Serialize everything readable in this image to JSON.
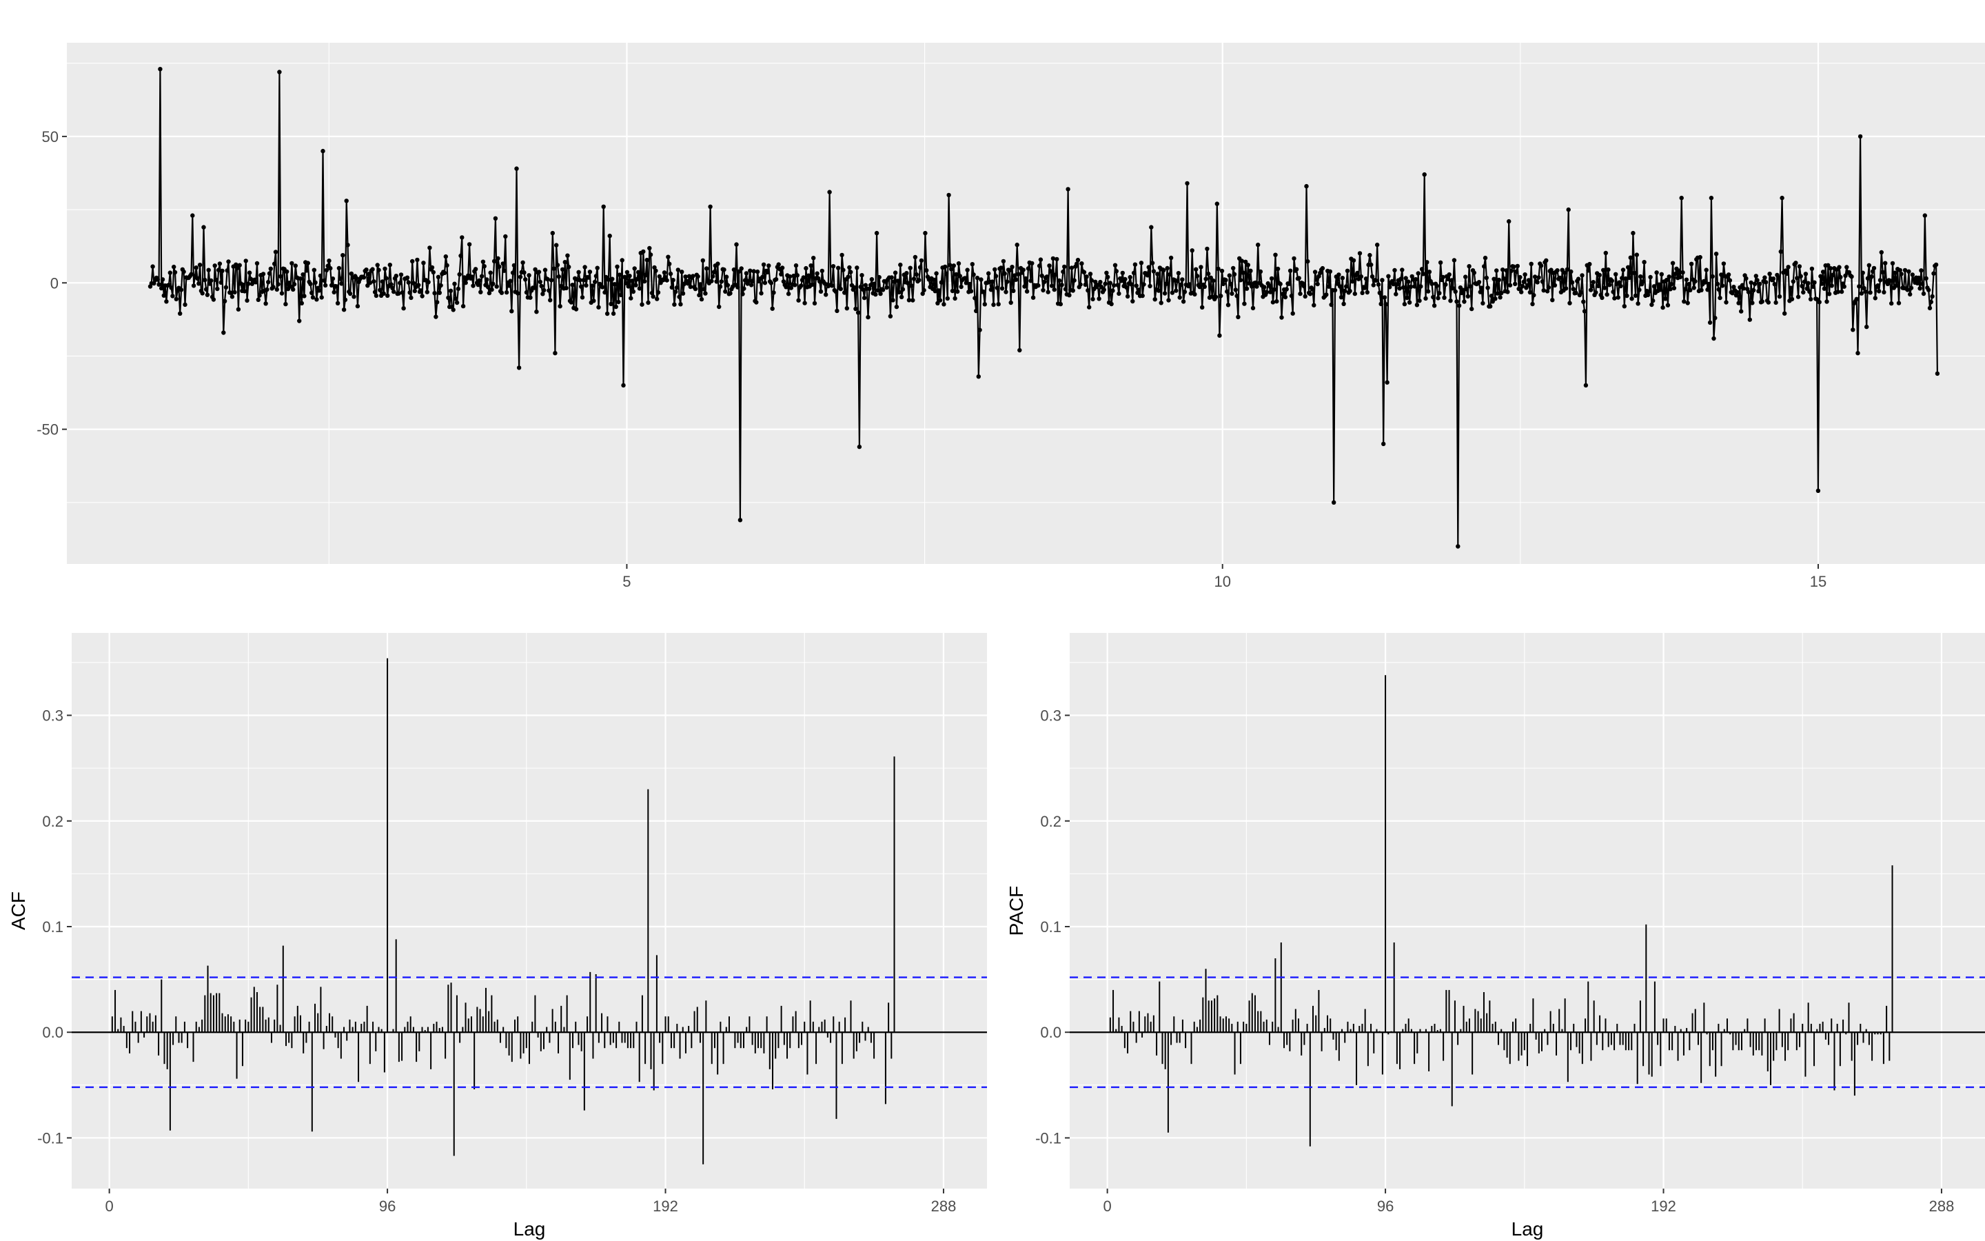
{
  "chart_data": [
    {
      "type": "line",
      "title": "",
      "xlabel": "",
      "ylabel": "",
      "xlim": [
        0.3,
        16.4
      ],
      "ylim": [
        -96,
        82
      ],
      "xticks": [
        5,
        10,
        15
      ],
      "yticks": [
        -50,
        0,
        50
      ],
      "xtick_labels": [
        "5",
        "10",
        "15"
      ],
      "ytick_labels": [
        "-50",
        "0",
        "50"
      ],
      "x_start": 1.0,
      "x_end": 16.0,
      "n_points": 1440,
      "baseline_noise": 4,
      "markers": true,
      "color": "#000000",
      "spikes": [
        {
          "x": 1.08,
          "y": 73
        },
        {
          "x": 2.08,
          "y": 72
        },
        {
          "x": 2.45,
          "y": 45
        },
        {
          "x": 2.65,
          "y": 28
        },
        {
          "x": 1.35,
          "y": 23
        },
        {
          "x": 1.45,
          "y": 19
        },
        {
          "x": 1.62,
          "y": -17
        },
        {
          "x": 2.25,
          "y": -13
        },
        {
          "x": 4.1,
          "y": -29
        },
        {
          "x": 4.08,
          "y": 39
        },
        {
          "x": 3.9,
          "y": 22
        },
        {
          "x": 4.4,
          "y": -24
        },
        {
          "x": 4.38,
          "y": 17
        },
        {
          "x": 4.8,
          "y": 26
        },
        {
          "x": 4.97,
          "y": -35
        },
        {
          "x": 5.7,
          "y": 26
        },
        {
          "x": 5.95,
          "y": -81
        },
        {
          "x": 6.7,
          "y": 31
        },
        {
          "x": 6.95,
          "y": -56
        },
        {
          "x": 7.1,
          "y": 17
        },
        {
          "x": 7.5,
          "y": 17
        },
        {
          "x": 7.7,
          "y": 30
        },
        {
          "x": 7.95,
          "y": -32
        },
        {
          "x": 8.3,
          "y": -23
        },
        {
          "x": 8.28,
          "y": 13
        },
        {
          "x": 8.7,
          "y": 32
        },
        {
          "x": 9.4,
          "y": 19
        },
        {
          "x": 9.7,
          "y": 34
        },
        {
          "x": 9.95,
          "y": 27
        },
        {
          "x": 9.97,
          "y": -18
        },
        {
          "x": 10.3,
          "y": 13
        },
        {
          "x": 10.7,
          "y": 33
        },
        {
          "x": 10.93,
          "y": -75
        },
        {
          "x": 11.3,
          "y": 13
        },
        {
          "x": 11.35,
          "y": -55
        },
        {
          "x": 11.38,
          "y": -34
        },
        {
          "x": 11.7,
          "y": 37
        },
        {
          "x": 11.98,
          "y": -90
        },
        {
          "x": 12.4,
          "y": 21
        },
        {
          "x": 12.9,
          "y": 25
        },
        {
          "x": 13.05,
          "y": -35
        },
        {
          "x": 13.45,
          "y": 17
        },
        {
          "x": 13.85,
          "y": 29
        },
        {
          "x": 14.1,
          "y": 29
        },
        {
          "x": 14.12,
          "y": -19
        },
        {
          "x": 14.7,
          "y": 29
        },
        {
          "x": 15.0,
          "y": -71
        },
        {
          "x": 15.35,
          "y": 50
        },
        {
          "x": 15.33,
          "y": -24
        },
        {
          "x": 15.9,
          "y": 23
        },
        {
          "x": 16.0,
          "y": -31
        }
      ]
    },
    {
      "type": "bar",
      "title": "",
      "xlabel": "Lag",
      "ylabel": "ACF",
      "xlim": [
        -13,
        303
      ],
      "ylim": [
        -0.148,
        0.378
      ],
      "xticks": [
        0,
        96,
        192,
        288
      ],
      "xtick_labels": [
        "0",
        "96",
        "192",
        "288"
      ],
      "yticks": [
        -0.1,
        0.0,
        0.1,
        0.2,
        0.3
      ],
      "ytick_labels": [
        "-0.1",
        "0.0",
        "0.1",
        "0.2",
        "0.3"
      ],
      "ci": 0.052,
      "ci_color": "#1a1aff",
      "n_lags": 288,
      "values": [
        0.015,
        0.04,
        0.003,
        0.014,
        0.006,
        -0.015,
        -0.02,
        0.02,
        0.01,
        -0.01,
        0.02,
        -0.005,
        0.015,
        0.018,
        0.01,
        0.016,
        -0.022,
        0.05,
        -0.03,
        -0.035,
        -0.093,
        -0.012,
        0.015,
        -0.01,
        -0.01,
        0.01,
        -0.015,
        0.0,
        -0.028,
        0.01,
        0.005,
        0.012,
        0.035,
        0.063,
        0.037,
        0.035,
        0.037,
        0.037,
        0.018,
        0.015,
        0.017,
        0.015,
        0.01,
        -0.044,
        0.012,
        -0.032,
        0.012,
        0.01,
        0.033,
        0.043,
        0.038,
        0.024,
        0.024,
        0.012,
        0.014,
        -0.01,
        0.012,
        0.045,
        0.007,
        0.082,
        -0.013,
        -0.01,
        -0.015,
        0.015,
        0.025,
        0.016,
        -0.02,
        -0.01,
        0.01,
        -0.094,
        0.027,
        0.018,
        0.043,
        -0.016,
        0.006,
        0.018,
        0.015,
        -0.005,
        -0.015,
        -0.025,
        0.005,
        -0.008,
        0.012,
        0.005,
        0.01,
        -0.047,
        0.008,
        0.01,
        0.025,
        -0.03,
        0.01,
        -0.018,
        0.005,
        0.003,
        -0.038,
        0.354,
        0.0,
        0.003,
        0.088,
        -0.028,
        -0.027,
        0.005,
        0.01,
        0.015,
        0.005,
        -0.028,
        -0.018,
        0.005,
        0.002,
        0.005,
        -0.035,
        0.008,
        0.01,
        0.004,
        0.005,
        -0.025,
        0.045,
        0.047,
        -0.117,
        0.035,
        -0.01,
        0.005,
        0.028,
        0.013,
        0.015,
        -0.054,
        0.024,
        0.022,
        0.015,
        0.042,
        0.02,
        0.035,
        0.01,
        0.012,
        -0.01,
        0.005,
        -0.015,
        -0.022,
        -0.028,
        0.012,
        0.015,
        -0.025,
        -0.02,
        -0.015,
        -0.03,
        0.01,
        0.035,
        -0.005,
        -0.018,
        -0.016,
        0.005,
        -0.01,
        0.022,
        0.01,
        -0.02,
        0.025,
        0.005,
        0.035,
        -0.045,
        -0.015,
        0.01,
        -0.012,
        -0.018,
        -0.074,
        0.015,
        0.057,
        -0.025,
        0.055,
        -0.01,
        0.018,
        -0.015,
        0.015,
        -0.012,
        -0.01,
        -0.015,
        0.01,
        -0.01,
        -0.01,
        -0.015,
        -0.015,
        -0.015,
        0.01,
        -0.047,
        0.035,
        -0.03,
        0.23,
        -0.035,
        -0.055,
        0.073,
        -0.01,
        -0.03,
        0.015,
        0.015,
        -0.015,
        -0.015,
        0.008,
        -0.025,
        0.005,
        -0.02,
        0.006,
        -0.015,
        0.02,
        0.024,
        -0.01,
        -0.125,
        0.03,
        0.0,
        -0.03,
        -0.015,
        -0.04,
        0.01,
        -0.03,
        0.005,
        0.015,
        0.0,
        -0.015,
        -0.01,
        -0.015,
        -0.015,
        0.005,
        0.015,
        -0.012,
        -0.02,
        -0.015,
        -0.015,
        -0.02,
        0.015,
        -0.035,
        -0.054,
        -0.025,
        -0.015,
        0.025,
        -0.012,
        -0.025,
        -0.015,
        0.015,
        0.02,
        -0.015,
        -0.012,
        0.01,
        -0.04,
        0.03,
        0.01,
        -0.03,
        0.005,
        0.01,
        0.012,
        -0.005,
        -0.01,
        0.015,
        -0.082,
        0.01,
        -0.03,
        0.014,
        0.0,
        0.03,
        -0.025,
        -0.018,
        -0.01,
        0.01,
        -0.008,
        0.005,
        -0.01,
        -0.025,
        0.0,
        0.0,
        0.0,
        -0.068,
        0.028,
        -0.025,
        0.261
      ]
    },
    {
      "type": "bar",
      "title": "",
      "xlabel": "Lag",
      "ylabel": "PACF",
      "xlim": [
        -13,
        303
      ],
      "ylim": [
        -0.148,
        0.378
      ],
      "xticks": [
        0,
        96,
        192,
        288
      ],
      "xtick_labels": [
        "0",
        "96",
        "192",
        "288"
      ],
      "yticks": [
        -0.1,
        0.0,
        0.1,
        0.2,
        0.3
      ],
      "ytick_labels": [
        "-0.1",
        "0.0",
        "0.1",
        "0.2",
        "0.3"
      ],
      "ci": 0.052,
      "ci_color": "#1a1aff",
      "n_lags": 288,
      "values": [
        0.014,
        0.04,
        0.003,
        0.014,
        0.006,
        -0.015,
        -0.02,
        0.02,
        0.01,
        -0.01,
        0.02,
        -0.005,
        0.015,
        0.018,
        0.01,
        0.016,
        -0.022,
        0.048,
        -0.03,
        -0.035,
        -0.095,
        -0.012,
        0.015,
        -0.01,
        -0.01,
        0.012,
        -0.015,
        0.0,
        -0.03,
        0.01,
        0.005,
        0.012,
        0.033,
        0.06,
        0.03,
        0.03,
        0.032,
        0.035,
        0.015,
        0.013,
        0.015,
        0.013,
        0.008,
        -0.04,
        0.01,
        -0.03,
        0.01,
        0.008,
        0.03,
        0.037,
        0.035,
        0.02,
        0.02,
        0.01,
        0.012,
        -0.012,
        0.01,
        0.07,
        0.005,
        0.085,
        -0.015,
        -0.012,
        -0.018,
        0.012,
        0.022,
        0.013,
        -0.022,
        -0.012,
        0.008,
        -0.108,
        0.025,
        0.016,
        0.04,
        -0.018,
        0.004,
        0.016,
        0.013,
        -0.007,
        -0.017,
        -0.027,
        0.003,
        -0.01,
        0.01,
        0.003,
        0.008,
        -0.05,
        0.006,
        0.008,
        0.022,
        -0.032,
        0.008,
        -0.02,
        0.003,
        0.001,
        -0.04,
        0.338,
        -0.002,
        0.001,
        0.085,
        -0.03,
        -0.035,
        0.003,
        0.008,
        0.013,
        0.003,
        -0.03,
        -0.02,
        0.003,
        0.0,
        0.003,
        -0.037,
        0.006,
        0.008,
        0.002,
        0.003,
        -0.027,
        0.04,
        0.04,
        -0.07,
        0.03,
        -0.012,
        0.003,
        0.025,
        0.01,
        0.013,
        -0.04,
        0.022,
        0.02,
        0.013,
        0.038,
        0.018,
        0.03,
        0.008,
        0.01,
        -0.012,
        0.003,
        -0.017,
        -0.024,
        -0.03,
        0.01,
        0.013,
        -0.027,
        -0.022,
        -0.017,
        -0.032,
        0.008,
        0.032,
        -0.007,
        -0.02,
        -0.018,
        0.003,
        -0.012,
        0.02,
        0.008,
        -0.022,
        0.022,
        0.003,
        0.032,
        -0.047,
        -0.017,
        0.008,
        -0.014,
        -0.02,
        -0.03,
        0.013,
        0.048,
        -0.027,
        0.03,
        -0.012,
        0.016,
        -0.017,
        0.013,
        -0.014,
        -0.012,
        -0.017,
        0.008,
        -0.012,
        -0.012,
        -0.017,
        -0.017,
        -0.017,
        0.008,
        -0.049,
        0.03,
        -0.032,
        0.102,
        -0.04,
        -0.042,
        0.048,
        -0.012,
        -0.032,
        0.013,
        0.013,
        -0.017,
        -0.017,
        0.006,
        -0.027,
        0.003,
        -0.022,
        0.004,
        -0.017,
        0.018,
        0.022,
        -0.012,
        -0.048,
        0.028,
        -0.002,
        -0.032,
        -0.017,
        -0.042,
        0.008,
        -0.032,
        0.003,
        0.013,
        -0.002,
        -0.017,
        -0.012,
        -0.017,
        -0.017,
        0.003,
        0.013,
        -0.014,
        -0.022,
        -0.017,
        -0.017,
        -0.022,
        0.013,
        -0.037,
        -0.05,
        -0.027,
        -0.017,
        0.022,
        -0.014,
        -0.027,
        -0.017,
        0.013,
        0.018,
        -0.017,
        -0.014,
        0.008,
        -0.042,
        0.028,
        0.008,
        -0.032,
        0.003,
        0.008,
        0.01,
        -0.007,
        -0.012,
        0.013,
        -0.055,
        0.008,
        -0.032,
        0.012,
        -0.002,
        0.028,
        -0.027,
        -0.06,
        -0.012,
        0.008,
        -0.01,
        0.003,
        -0.012,
        -0.027,
        -0.002,
        -0.002,
        -0.002,
        -0.03,
        0.025,
        -0.027,
        0.158
      ]
    }
  ]
}
